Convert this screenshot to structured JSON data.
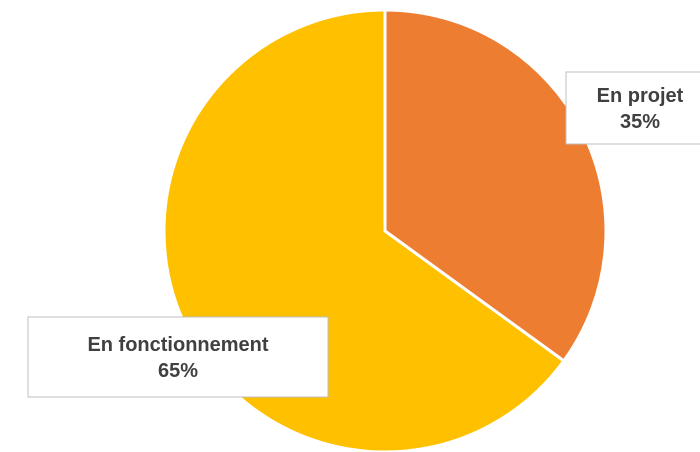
{
  "chart_data": {
    "type": "pie",
    "title": "",
    "categories": [
      "En projet",
      "En fonctionnement"
    ],
    "values": [
      35,
      65
    ],
    "value_labels": [
      "35%",
      "65%"
    ],
    "colors": [
      "#ED7D31",
      "#FFC000"
    ],
    "start_angle_deg": 0,
    "direction": "clockwise",
    "legend": "none",
    "data_labels": "category-and-percent"
  }
}
